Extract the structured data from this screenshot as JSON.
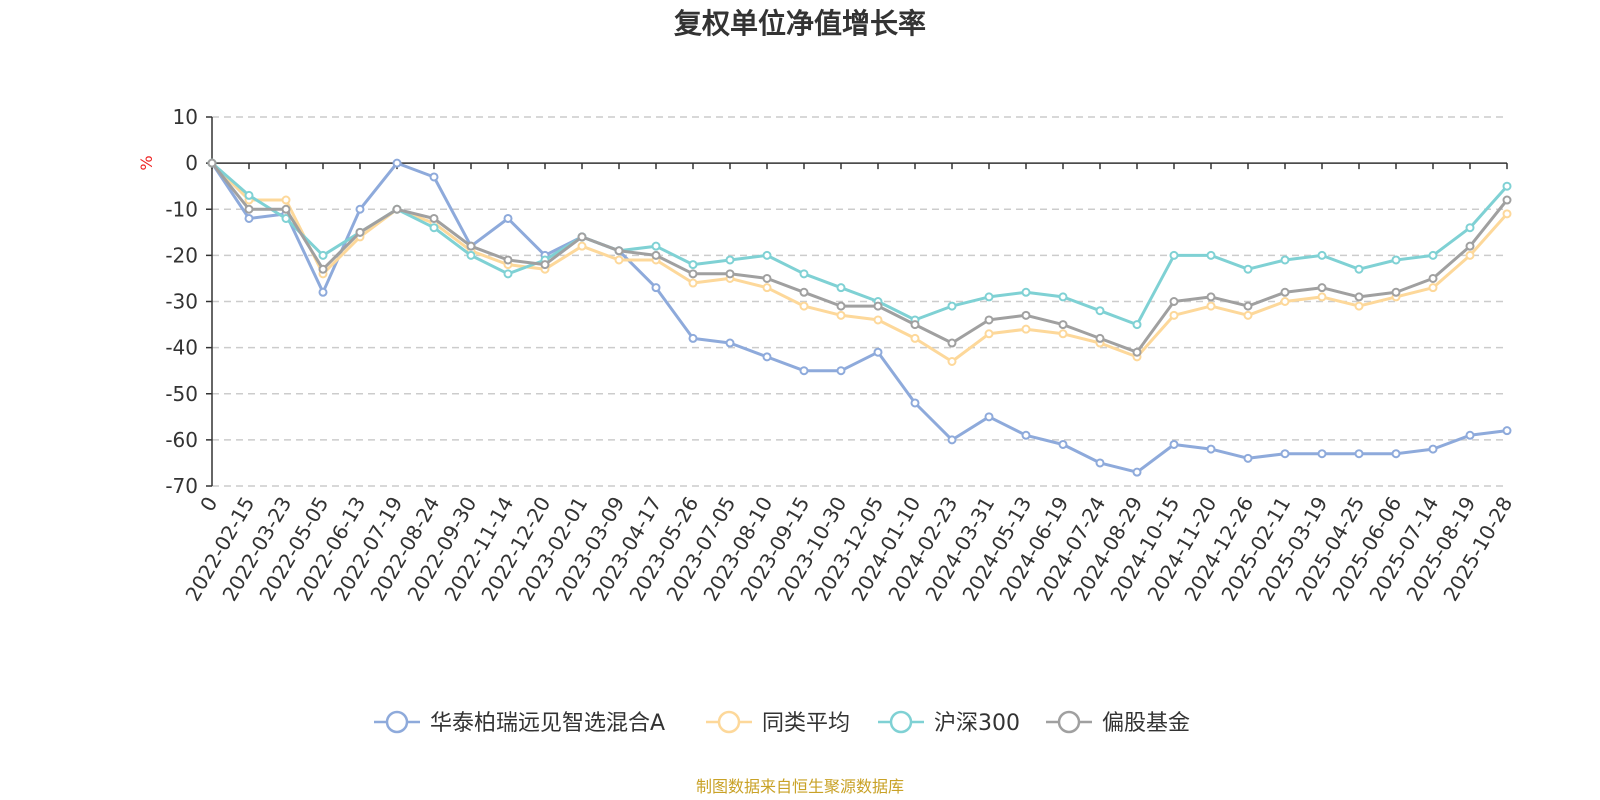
{
  "chart_data": {
    "type": "line",
    "title": "复权单位净值增长率",
    "ylabel": "%",
    "ylim": [
      -70,
      10
    ],
    "yticks": [
      10,
      0,
      -10,
      -20,
      -30,
      -40,
      -50,
      -60,
      -70
    ],
    "x_tick_labels": [
      "0",
      "2022-02-15",
      "2022-03-23",
      "2022-05-05",
      "2022-06-13",
      "2022-07-19",
      "2022-08-24",
      "2022-09-30",
      "2022-11-14",
      "2022-12-20",
      "2023-02-01",
      "2023-03-09",
      "2023-04-17",
      "2023-05-26",
      "2023-07-05",
      "2023-08-10",
      "2023-09-15",
      "2023-10-30",
      "2023-12-05",
      "2024-01-10",
      "2024-02-23",
      "2024-03-31",
      "2024-05-13",
      "2024-06-19",
      "2024-07-24",
      "2024-08-29",
      "2024-10-15",
      "2024-11-20",
      "2024-12-26",
      "2025-02-11",
      "2025-03-19",
      "2025-04-25",
      "2025-06-06",
      "2025-07-14",
      "2025-08-19",
      "2025-10-28"
    ],
    "grid": "horizontal-dashed",
    "legend": "bottom-center",
    "series": [
      {
        "name": "华泰柏瑞远见智选混合A",
        "color": "#8eaadb",
        "values": [
          0,
          -12,
          -11,
          -28,
          -10,
          0,
          -3,
          -18,
          -12,
          -20,
          -16,
          -19,
          -27,
          -38,
          -39,
          -42,
          -45,
          -45,
          -41,
          -52,
          -60,
          -55,
          -59,
          -61,
          -65,
          -67,
          -61,
          -62,
          -64,
          -63,
          -63,
          -63,
          -63,
          -62,
          -59,
          -58
        ]
      },
      {
        "name": "同类平均",
        "color": "#fdd89a",
        "values": [
          0,
          -8,
          -8,
          -24,
          -16,
          -10,
          -13,
          -19,
          -22,
          -23,
          -18,
          -21,
          -21,
          -26,
          -25,
          -27,
          -31,
          -33,
          -34,
          -38,
          -43,
          -37,
          -36,
          -37,
          -39,
          -42,
          -33,
          -31,
          -33,
          -30,
          -29,
          -31,
          -29,
          -27,
          -20,
          -11
        ]
      },
      {
        "name": "沪深300",
        "color": "#7fd1d4",
        "values": [
          0,
          -7,
          -12,
          -20,
          -15,
          -10,
          -14,
          -20,
          -24,
          -21,
          -16,
          -19,
          -18,
          -22,
          -21,
          -20,
          -24,
          -27,
          -30,
          -34,
          -31,
          -29,
          -28,
          -29,
          -32,
          -35,
          -20,
          -20,
          -23,
          -21,
          -20,
          -23,
          -21,
          -20,
          -14,
          -5
        ]
      },
      {
        "name": "偏股基金",
        "color": "#a0a0a0",
        "values": [
          0,
          -10,
          -10,
          -23,
          -15,
          -10,
          -12,
          -18,
          -21,
          -22,
          -16,
          -19,
          -20,
          -24,
          -24,
          -25,
          -28,
          -31,
          -31,
          -35,
          -39,
          -34,
          -33,
          -35,
          -38,
          -41,
          -30,
          -29,
          -31,
          -28,
          -27,
          -29,
          -28,
          -25,
          -18,
          -8
        ]
      }
    ]
  },
  "source_note": "制图数据来自恒生聚源数据库",
  "colors": {
    "unit_label": "#ee2222",
    "source_note": "#c9a227",
    "axis": "#333333",
    "grid": "#cccccc"
  }
}
